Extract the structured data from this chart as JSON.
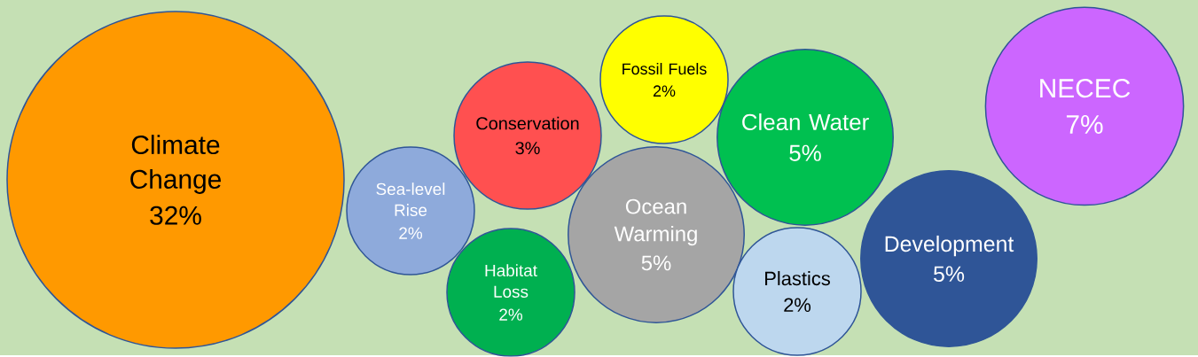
{
  "chart_data": {
    "type": "other",
    "categories": [
      "Climate Change",
      "Sea-level Rise",
      "Habitat Loss",
      "Conservation",
      "Fossil Fuels",
      "Ocean Warming",
      "Clean Water",
      "Plastics",
      "Development",
      "NECEC"
    ],
    "values": [
      32,
      2,
      2,
      3,
      2,
      5,
      5,
      2,
      5,
      7
    ],
    "value_labels": [
      "32%",
      "2%",
      "2%",
      "3%",
      "2%",
      "5%",
      "5%",
      "2%",
      "5%",
      "7%"
    ],
    "colors": [
      "#ff9900",
      "#8eaadb",
      "#00b050",
      "#ff5050",
      "#ffff00",
      "#a5a5a5",
      "#00c050",
      "#bdd7ee",
      "#2f5597",
      "#cc66ff"
    ]
  }
}
